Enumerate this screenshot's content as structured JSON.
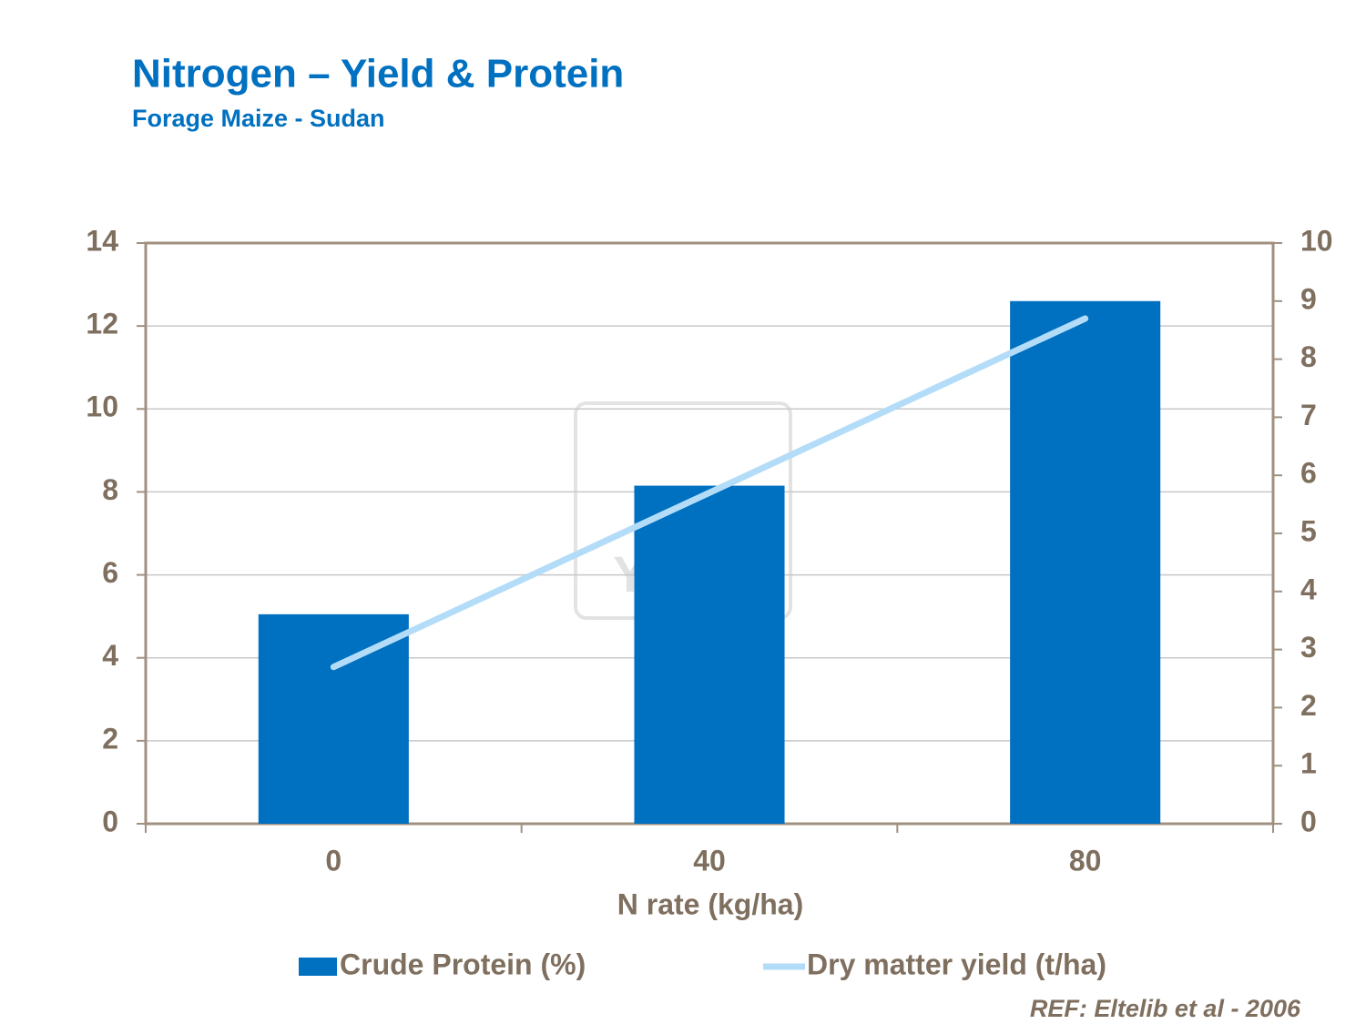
{
  "chart_data": {
    "type": "bar_line",
    "title": "Nitrogen – Yield & Protein",
    "subtitle": "Forage Maize - Sudan",
    "x_label": "N rate (kg/ha)",
    "categories": [
      "0",
      "40",
      "80"
    ],
    "series": [
      {
        "name": "Crude Protein (%)",
        "type": "bar",
        "color": "#0070c0",
        "values": [
          5.05,
          8.15,
          12.6
        ]
      },
      {
        "name": "Dry matter yield (t/ha)",
        "type": "line",
        "axis": "y2",
        "color": "#b3dcf8",
        "values": [
          2.7,
          5.7,
          8.7
        ]
      }
    ],
    "ylim": [
      0,
      14
    ],
    "yticks": [
      0,
      2,
      4,
      6,
      8,
      10,
      12,
      14
    ],
    "y2lim": [
      0,
      10
    ],
    "y2ticks": [
      0,
      1,
      2,
      3,
      4,
      5,
      6,
      7,
      8,
      9,
      10
    ],
    "grid": true,
    "legend": "bottom",
    "watermark": "YARA",
    "reference": "REF:  Eltelib et al - 2006"
  }
}
